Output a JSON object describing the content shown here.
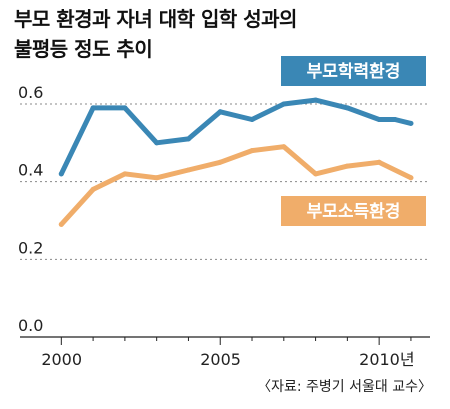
{
  "chart_data": {
    "type": "line",
    "title_lines": [
      "부모 환경과 자녀 대학 입학 성과의",
      "불평등 정도 추이"
    ],
    "source": "〈자료: 주병기 서울대 교수〉",
    "x_ticks": [
      {
        "year": 2000,
        "label": "2000"
      },
      {
        "year": 2005,
        "label": "2005"
      },
      {
        "year": 2010,
        "label": "2010년"
      }
    ],
    "y_ticks": [
      {
        "value": 0.0,
        "label": "0.0"
      },
      {
        "value": 0.2,
        "label": "0.2"
      },
      {
        "value": 0.4,
        "label": "0.4"
      },
      {
        "value": 0.6,
        "label": "0.6"
      }
    ],
    "xlim": [
      1998.7,
      2011.6
    ],
    "ylim": [
      0,
      0.6
    ],
    "grid": true,
    "series": [
      {
        "name": "부모학력환경",
        "color": "#3a87b5",
        "x": [
          2000,
          2001,
          2002,
          2003,
          2004,
          2005,
          2006,
          2007,
          2008,
          2009,
          2010,
          2010.5,
          2011
        ],
        "values": [
          0.42,
          0.59,
          0.59,
          0.5,
          0.51,
          0.58,
          0.56,
          0.6,
          0.61,
          0.59,
          0.56,
          0.56,
          0.55
        ]
      },
      {
        "name": "부모소득환경",
        "color": "#f0ad6a",
        "x": [
          2000,
          2001,
          2002,
          2003,
          2004,
          2005,
          2006,
          2007,
          2008,
          2009,
          2010,
          2011
        ],
        "values": [
          0.29,
          0.38,
          0.42,
          0.41,
          0.43,
          0.45,
          0.48,
          0.49,
          0.42,
          0.44,
          0.45,
          0.41
        ]
      }
    ]
  }
}
